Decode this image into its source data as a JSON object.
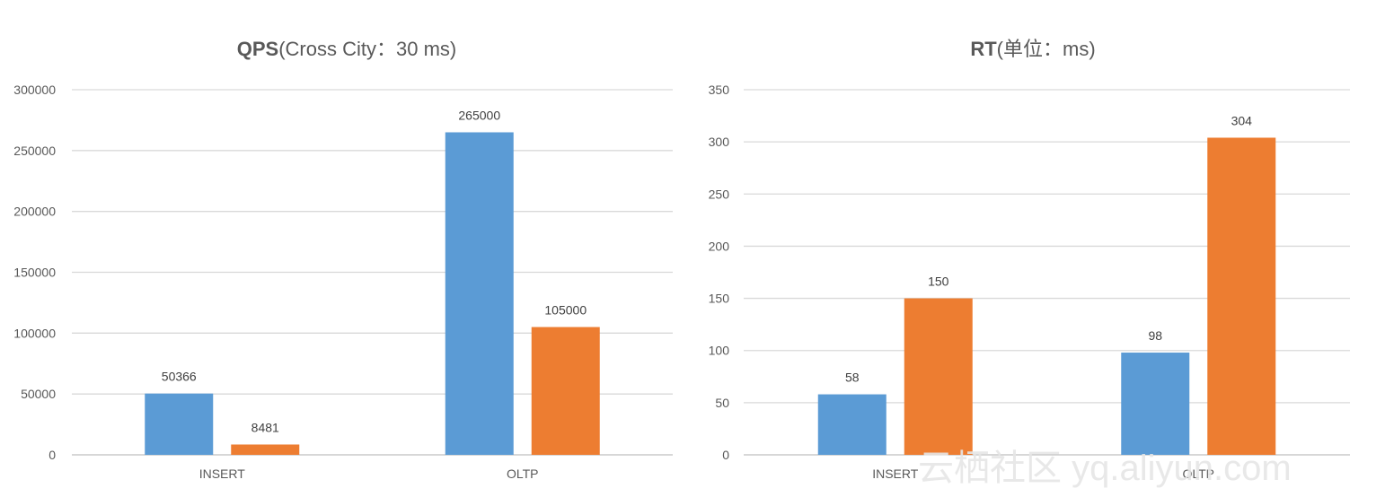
{
  "watermark": "云栖社区 yq.aliyun.com",
  "chart_data": [
    {
      "type": "bar",
      "title_bold": "QPS",
      "title_rest": "(Cross City：30 ms)",
      "categories": [
        "INSERT",
        "OLTP"
      ],
      "series": [
        {
          "name": "series-1",
          "color": "#5b9bd5",
          "values": [
            50366,
            265000
          ]
        },
        {
          "name": "series-2",
          "color": "#ed7d31",
          "values": [
            8481,
            105000
          ]
        }
      ],
      "ylim": [
        0,
        300000
      ],
      "yticks": [
        0,
        50000,
        100000,
        150000,
        200000,
        250000,
        300000
      ],
      "grid": true,
      "legend": "none"
    },
    {
      "type": "bar",
      "title_bold": "RT",
      "title_rest": "(单位：ms)",
      "categories": [
        "INSERT",
        "OLTP"
      ],
      "series": [
        {
          "name": "series-1",
          "color": "#5b9bd5",
          "values": [
            58,
            98
          ]
        },
        {
          "name": "series-2",
          "color": "#ed7d31",
          "values": [
            150,
            304
          ]
        }
      ],
      "ylim": [
        0,
        350
      ],
      "yticks": [
        0,
        50,
        100,
        150,
        200,
        250,
        300,
        350
      ],
      "grid": true,
      "legend": "none"
    }
  ]
}
